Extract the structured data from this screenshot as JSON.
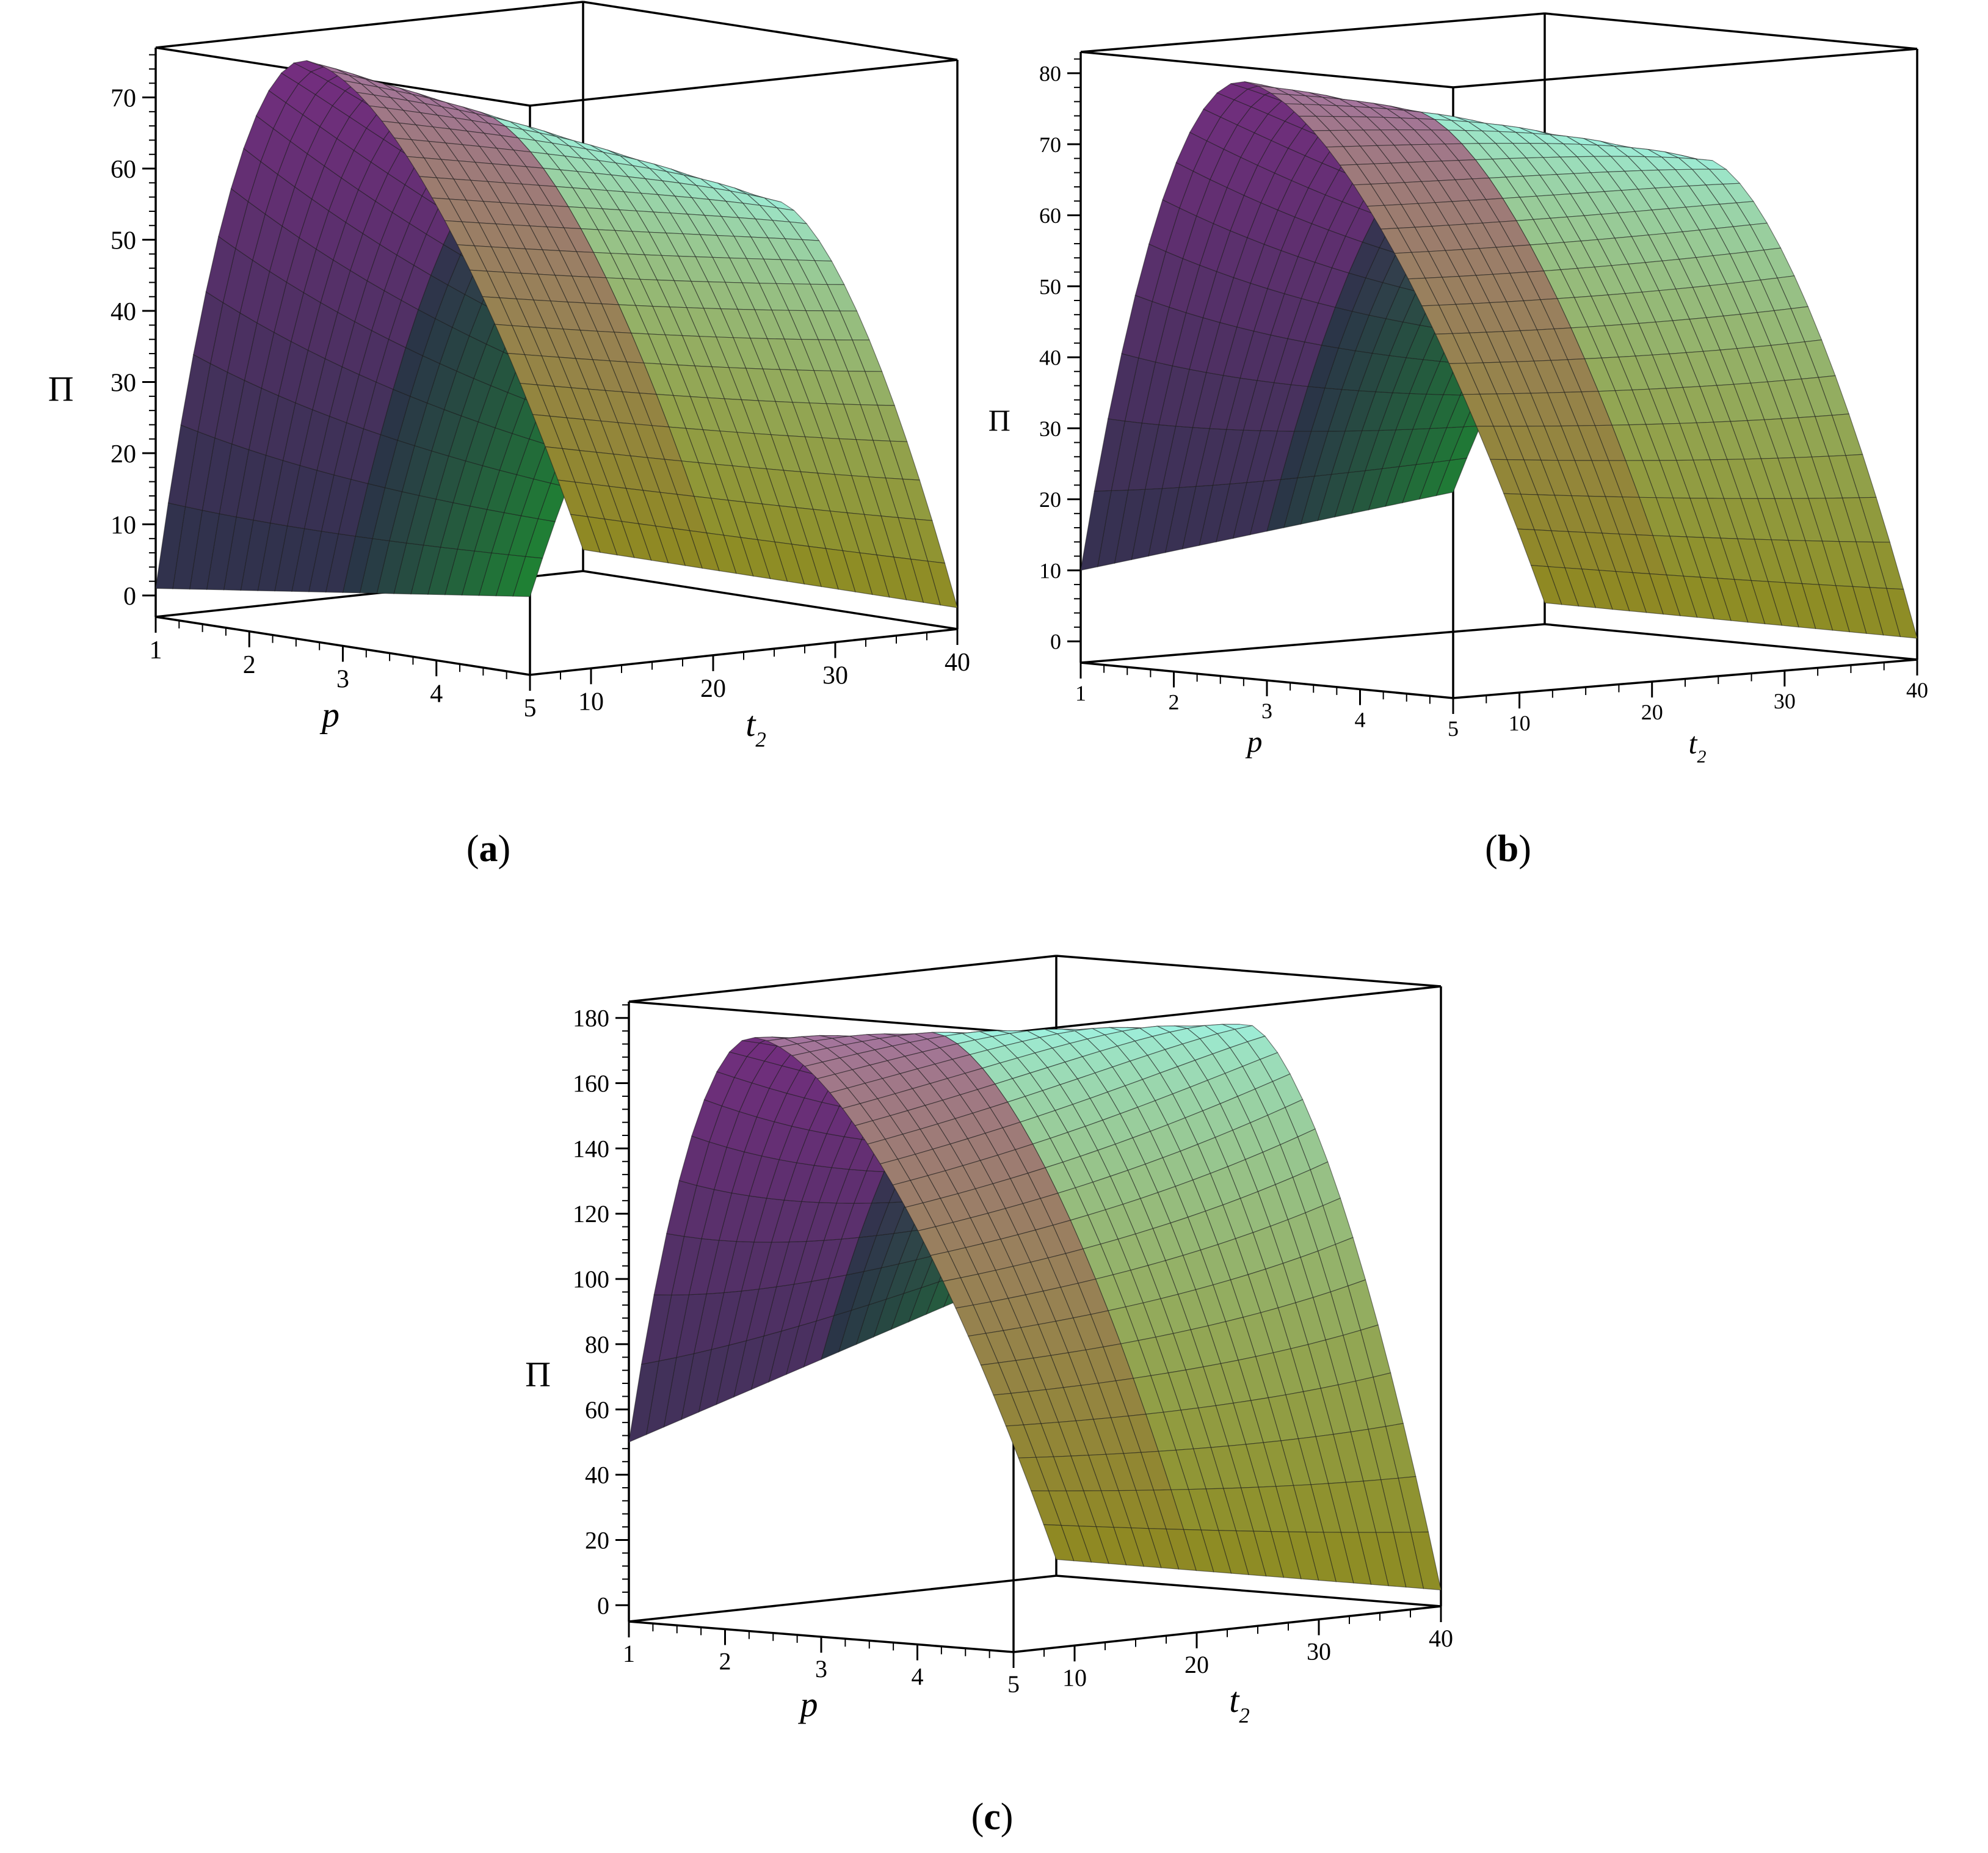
{
  "figure": {
    "panels": [
      {
        "id": "a",
        "caption_letter": "a"
      },
      {
        "id": "b",
        "caption_letter": "b"
      },
      {
        "id": "c",
        "caption_letter": "c"
      }
    ]
  },
  "chart_data": [
    {
      "type": "surface3d",
      "panel": "a",
      "zlabel": "Π",
      "xlabel": "p",
      "ylabel_main": "t",
      "ylabel_sub": "2",
      "x_ticks": [
        "1",
        "2",
        "3",
        "4",
        "5"
      ],
      "y_ticks": [
        "10",
        "20",
        "30",
        "40"
      ],
      "z_ticks": [
        "0",
        "10",
        "20",
        "30",
        "40",
        "50",
        "60",
        "70"
      ],
      "x_range": [
        1,
        5
      ],
      "y_range": [
        5,
        40
      ],
      "z_range": [
        -3,
        77
      ],
      "corner_values": {
        "p1_t5": 1,
        "p5_t5": 8,
        "p1_t40": 0,
        "p5_t40": 0
      },
      "peak_p1": {
        "t2": 17,
        "value": 73
      },
      "peak_p5": {
        "t2": 25,
        "value": 60
      },
      "colors": {
        "low": "#1e8a32",
        "mid": "#2a3248",
        "high": "#7a2e84",
        "light": "#9ff6e8",
        "olive": "#8e8a20"
      }
    },
    {
      "type": "surface3d",
      "panel": "b",
      "zlabel": "Π",
      "xlabel": "p",
      "ylabel_main": "t",
      "ylabel_sub": "2",
      "x_ticks": [
        "1",
        "2",
        "3",
        "4",
        "5"
      ],
      "y_ticks": [
        "10",
        "20",
        "30",
        "40"
      ],
      "z_ticks": [
        "0",
        "10",
        "20",
        "30",
        "40",
        "50",
        "60",
        "70",
        "80"
      ],
      "x_range": [
        1,
        5
      ],
      "y_range": [
        5,
        40
      ],
      "z_range": [
        -3,
        83
      ],
      "corner_values": {
        "p1_t5": 10,
        "p5_t5": 26,
        "p1_t40": 0,
        "p5_t40": 0
      },
      "peak_p1": {
        "t2": 17,
        "value": 77
      },
      "peak_p5": {
        "t2": 24,
        "value": 70
      },
      "colors": {
        "low": "#1e8a32",
        "mid": "#2a3248",
        "high": "#7a2e84",
        "light": "#9ff6e8",
        "olive": "#8e8a20"
      }
    },
    {
      "type": "surface3d",
      "panel": "c",
      "zlabel": "Π",
      "xlabel": "p",
      "ylabel_main": "t",
      "ylabel_sub": "2",
      "x_ticks": [
        "1",
        "2",
        "3",
        "4",
        "5"
      ],
      "y_ticks": [
        "10",
        "20",
        "30",
        "40"
      ],
      "z_ticks": [
        "0",
        "20",
        "40",
        "60",
        "80",
        "100",
        "120",
        "140",
        "160",
        "180"
      ],
      "x_range": [
        1,
        5
      ],
      "y_range": [
        5,
        40
      ],
      "z_range": [
        -5,
        185
      ],
      "corner_values": {
        "p1_t5": 50,
        "p5_t5": 110,
        "p1_t40": 0,
        "p5_t40": 0
      },
      "peak_p1": {
        "t2": 15,
        "value": 170
      },
      "peak_p5": {
        "t2": 24,
        "value": 180
      },
      "colors": {
        "low": "#1e8a32",
        "mid": "#2a3248",
        "high": "#7a2e84",
        "light": "#9ff6e8",
        "olive": "#8e8a20"
      }
    }
  ]
}
